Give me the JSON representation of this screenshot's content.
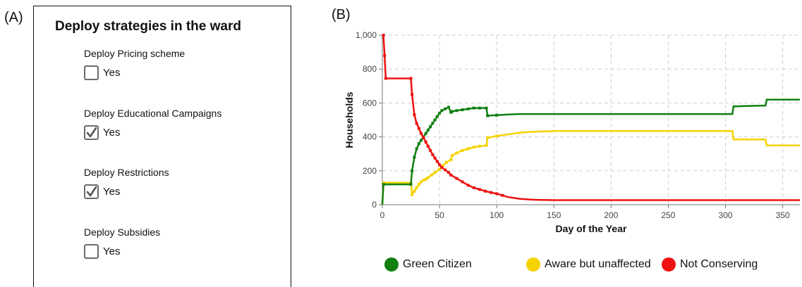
{
  "panel_a": {
    "label": "(A)",
    "title": "Deploy strategies in the ward",
    "strategies": [
      {
        "label": "Deploy Pricing scheme",
        "option": "Yes",
        "checked": false
      },
      {
        "label": "Deploy Educational Campaigns",
        "option": "Yes",
        "checked": true
      },
      {
        "label": "Deploy Restrictions",
        "option": "Yes",
        "checked": true
      },
      {
        "label": "Deploy Subsidies",
        "option": "Yes",
        "checked": false
      }
    ]
  },
  "panel_b": {
    "label": "(B)",
    "legend": [
      {
        "name": "Green Citizen",
        "color": "#118011"
      },
      {
        "name": "Aware but unaffected",
        "color": "#f5d300"
      },
      {
        "name": "Not Conserving",
        "color": "#ee1111"
      }
    ]
  },
  "chart_data": {
    "type": "line",
    "title": "",
    "xlabel": "Day of the Year",
    "ylabel": "Households",
    "xlim": [
      0,
      365
    ],
    "ylim": [
      0,
      1000
    ],
    "xticks": [
      0,
      50,
      100,
      150,
      200,
      250,
      300,
      350
    ],
    "yticks": [
      0,
      200,
      400,
      600,
      800,
      1000
    ],
    "ytick_labels": [
      "0",
      "200",
      "400",
      "600",
      "800",
      "1,000"
    ],
    "grid": true,
    "legend_position": "bottom",
    "series": [
      {
        "name": "Green Citizen",
        "color": "#118011",
        "x": [
          0,
          1,
          25,
          26,
          28,
          30,
          32,
          34,
          36,
          38,
          40,
          42,
          44,
          46,
          48,
          50,
          52,
          55,
          58,
          60,
          61,
          65,
          70,
          75,
          80,
          85,
          91,
          92,
          100,
          110,
          120,
          150,
          200,
          250,
          306,
          307,
          335,
          336,
          365
        ],
        "y": [
          0,
          120,
          120,
          200,
          280,
          330,
          360,
          380,
          400,
          420,
          440,
          460,
          480,
          500,
          520,
          540,
          555,
          565,
          575,
          545,
          550,
          555,
          560,
          565,
          570,
          570,
          570,
          525,
          528,
          532,
          535,
          535,
          535,
          535,
          535,
          580,
          585,
          620,
          620
        ]
      },
      {
        "name": "Aware but unaffected",
        "color": "#f5d300",
        "x": [
          0,
          1,
          25,
          26,
          28,
          30,
          32,
          34,
          36,
          38,
          40,
          43,
          46,
          50,
          53,
          56,
          60,
          61,
          65,
          70,
          75,
          80,
          85,
          91,
          92,
          100,
          110,
          120,
          130,
          140,
          150,
          200,
          250,
          306,
          307,
          335,
          336,
          365
        ],
        "y": [
          0,
          130,
          130,
          60,
          80,
          100,
          120,
          135,
          145,
          150,
          160,
          175,
          190,
          210,
          230,
          250,
          265,
          290,
          305,
          320,
          330,
          340,
          345,
          350,
          395,
          405,
          415,
          425,
          430,
          432,
          435,
          435,
          435,
          435,
          385,
          385,
          350,
          350
        ]
      },
      {
        "name": "Not Conserving",
        "color": "#ee1111",
        "x": [
          0,
          1,
          2,
          3,
          25,
          26,
          28,
          30,
          32,
          34,
          36,
          38,
          40,
          42,
          44,
          46,
          48,
          50,
          52,
          55,
          58,
          60,
          65,
          70,
          75,
          80,
          85,
          90,
          95,
          100,
          105,
          110,
          115,
          120,
          130,
          140,
          150,
          200,
          250,
          300,
          365
        ],
        "y": [
          1000,
          1000,
          880,
          745,
          745,
          650,
          530,
          480,
          450,
          420,
          395,
          370,
          345,
          320,
          295,
          275,
          255,
          235,
          220,
          205,
          190,
          175,
          155,
          135,
          115,
          100,
          90,
          80,
          72,
          65,
          55,
          45,
          40,
          35,
          30,
          28,
          27,
          27,
          27,
          27,
          27
        ]
      }
    ]
  }
}
